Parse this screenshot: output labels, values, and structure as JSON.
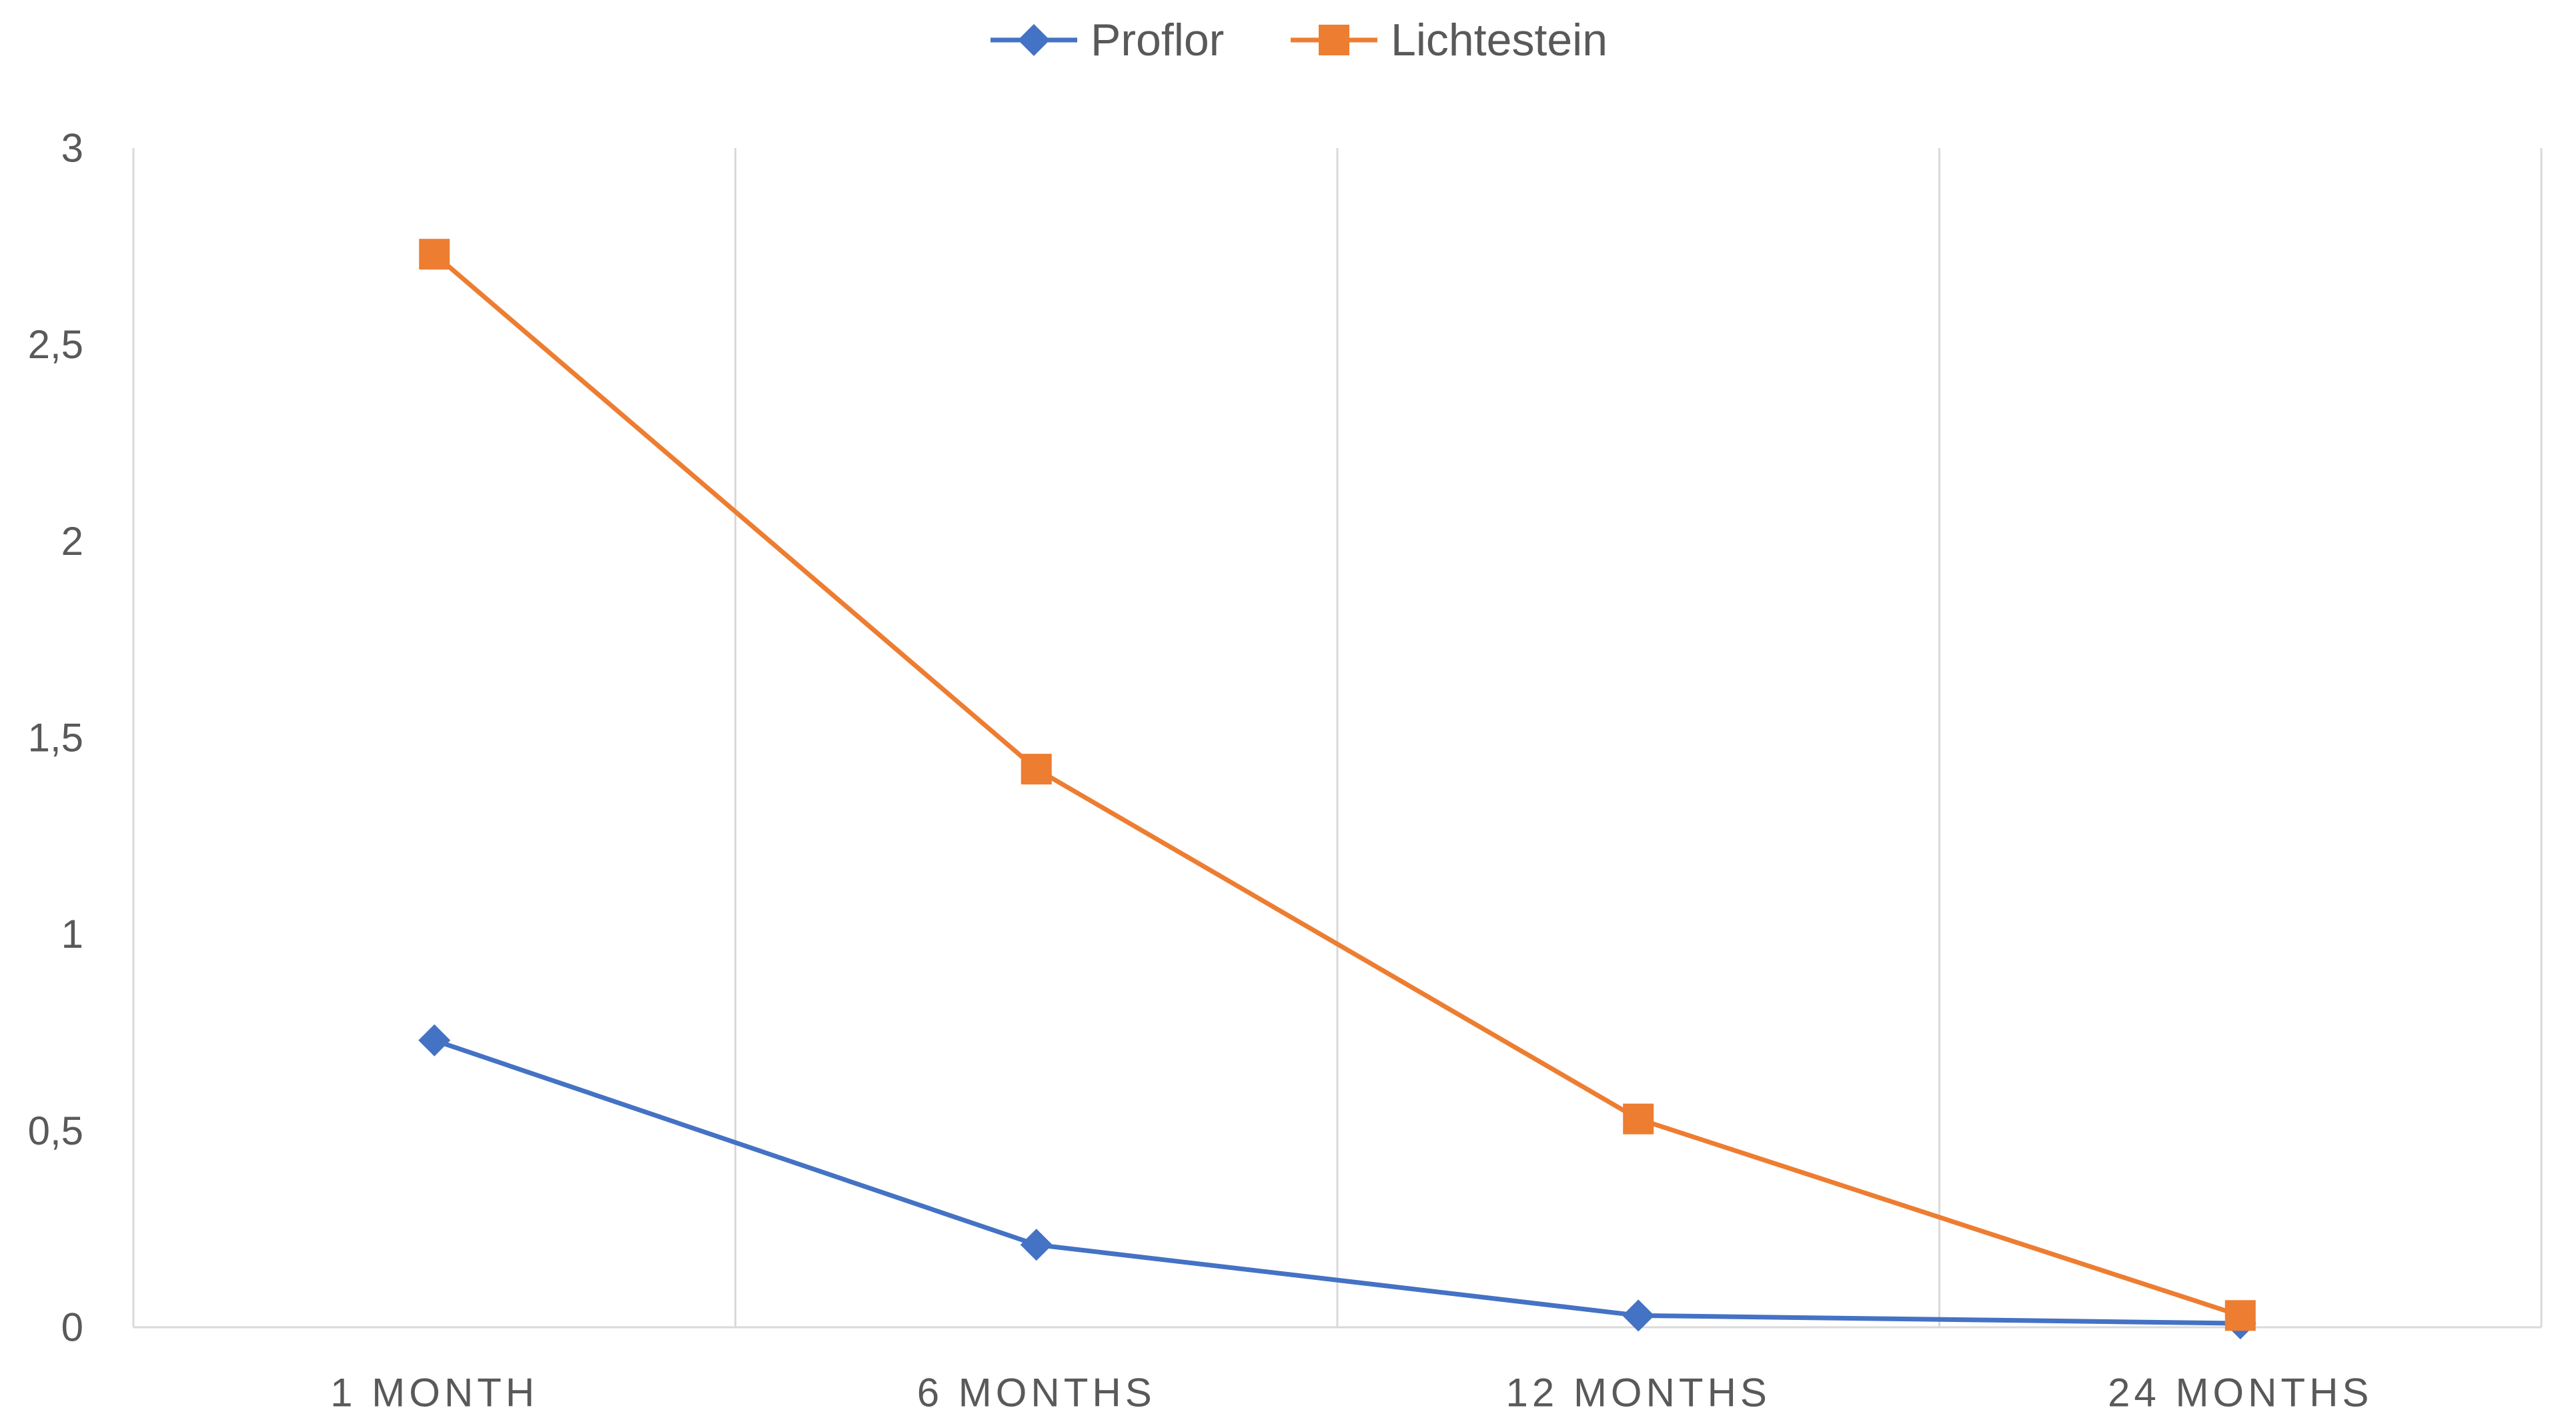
{
  "chart_data": {
    "type": "line",
    "categories": [
      "1 MONTH",
      "6 MONTHS",
      "12 MONTHS",
      "24 MONTHS"
    ],
    "series": [
      {
        "name": "Proflor",
        "values": [
          0.73,
          0.21,
          0.03,
          0.01
        ],
        "color": "#4472C4",
        "marker": "diamond"
      },
      {
        "name": "Lichtestein",
        "values": [
          2.73,
          1.42,
          0.53,
          0.03
        ],
        "color": "#ED7D31",
        "marker": "square"
      }
    ],
    "ylim": [
      0,
      3
    ],
    "yticks": [
      "0",
      "0,5",
      "1",
      "1,5",
      "2",
      "2,5",
      "3"
    ],
    "yticks_values": [
      0,
      0.5,
      1,
      1.5,
      2,
      2.5,
      3
    ],
    "grid": "vertical",
    "legend": "top-center"
  }
}
